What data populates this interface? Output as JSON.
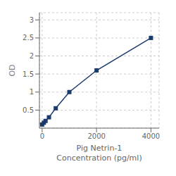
{
  "chart_data": {
    "type": "line",
    "x": [
      0,
      62.5,
      125,
      250,
      500,
      1000,
      2000,
      4000
    ],
    "values": [
      0.1,
      0.15,
      0.2,
      0.3,
      0.55,
      1.0,
      1.6,
      2.5
    ],
    "color": "#1a3a6b",
    "marker": "square",
    "xlabel": "Pig Netrin-1\nConcentration (pg/ml)",
    "ylabel": "OD",
    "xlim": [
      -100,
      4300
    ],
    "ylim": [
      0,
      3.2
    ],
    "xticks": [
      0,
      2000,
      4000
    ],
    "yticks": [
      0.5,
      1,
      1.5,
      2,
      2.5,
      3
    ],
    "grid": true
  }
}
